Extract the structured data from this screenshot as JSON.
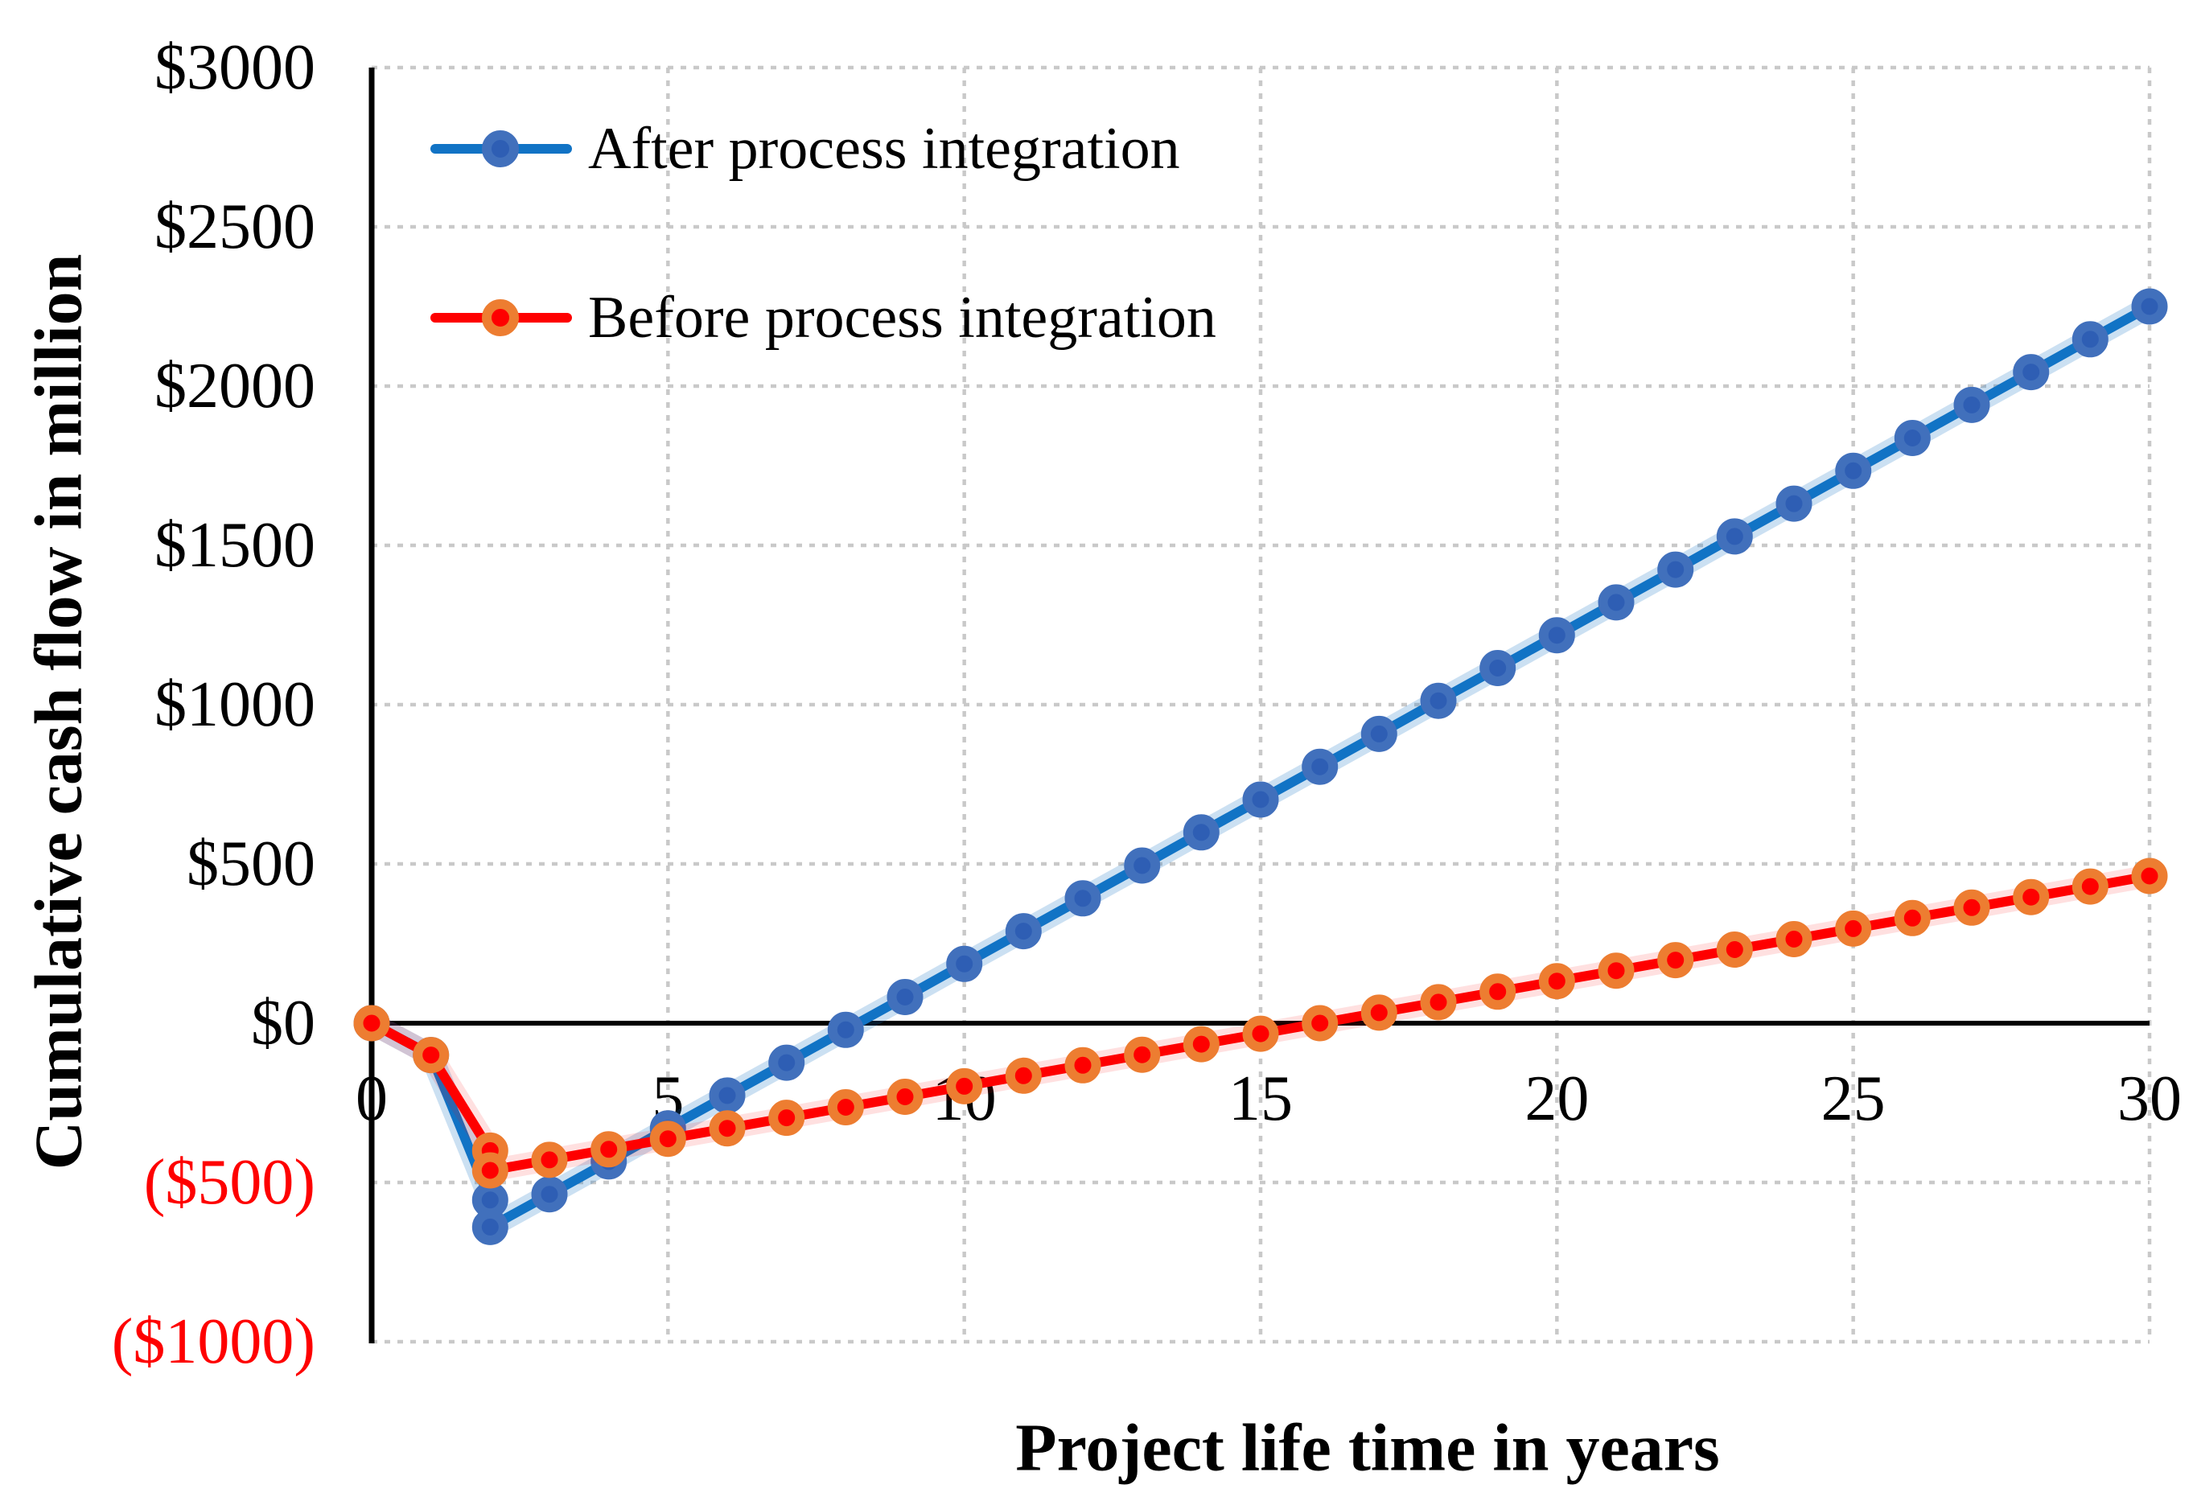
{
  "chart_data": {
    "type": "line",
    "title": "",
    "xlabel": "Project life time in years",
    "ylabel": "Cumulative cash flow in million",
    "xlim": [
      0,
      30
    ],
    "ylim": [
      -1000,
      3000
    ],
    "grid": "dotted",
    "legend_position": "top-left-inside",
    "colors": {
      "axis": "#000000",
      "gridline": "#C9C9C9",
      "negative_tick_label": "#FE0000"
    },
    "x_ticks": [
      {
        "value": 0,
        "label": "0",
        "color": "#000000"
      },
      {
        "value": 5,
        "label": "5",
        "color": "#000000"
      },
      {
        "value": 10,
        "label": "10",
        "color": "#000000"
      },
      {
        "value": 15,
        "label": "15",
        "color": "#000000"
      },
      {
        "value": 20,
        "label": "20",
        "color": "#000000"
      },
      {
        "value": 25,
        "label": "25",
        "color": "#000000"
      },
      {
        "value": 30,
        "label": "30",
        "color": "#000000"
      }
    ],
    "y_ticks": [
      {
        "value": 3000,
        "label": "$3000",
        "color": "#000000"
      },
      {
        "value": 2500,
        "label": "$2500",
        "color": "#000000"
      },
      {
        "value": 2000,
        "label": "$2000",
        "color": "#000000"
      },
      {
        "value": 1500,
        "label": "$1500",
        "color": "#000000"
      },
      {
        "value": 1000,
        "label": "$1000",
        "color": "#000000"
      },
      {
        "value": 500,
        "label": "$500",
        "color": "#000000"
      },
      {
        "value": 0,
        "label": "$0",
        "color": "#000000"
      },
      {
        "value": -500,
        "label": "($500)",
        "color": "#FE0000"
      },
      {
        "value": -1000,
        "label": "($1000)",
        "color": "#FE0000"
      }
    ],
    "series": [
      {
        "name": "After process integration",
        "line_color": "#1173C5",
        "marker_fill": "#2E5EB4",
        "marker_border": "#4170BC",
        "x": [
          0,
          1,
          2,
          2,
          3,
          4,
          5,
          6,
          7,
          8,
          9,
          10,
          11,
          12,
          13,
          14,
          15,
          16,
          17,
          18,
          19,
          20,
          21,
          22,
          23,
          24,
          25,
          26,
          27,
          28,
          29,
          30
        ],
        "y": [
          0,
          -100,
          -555,
          -640,
          -537,
          -434,
          -330,
          -227,
          -124,
          -21,
          82,
          186,
          289,
          392,
          495,
          599,
          702,
          805,
          908,
          1012,
          1115,
          1218,
          1321,
          1424,
          1528,
          1631,
          1734,
          1837,
          1941,
          2044,
          2147,
          2250
        ]
      },
      {
        "name": "Before process integration",
        "line_color": "#FE0000",
        "marker_fill": "#FE0000",
        "marker_border": "#ED7D31",
        "x": [
          0,
          1,
          2,
          2,
          3,
          4,
          5,
          6,
          7,
          8,
          9,
          10,
          11,
          12,
          13,
          14,
          15,
          16,
          17,
          18,
          19,
          20,
          21,
          22,
          23,
          24,
          25,
          26,
          27,
          28,
          29,
          30
        ],
        "y": [
          0,
          -100,
          -400,
          -462,
          -429,
          -396,
          -363,
          -330,
          -297,
          -264,
          -231,
          -198,
          -165,
          -132,
          -99,
          -66,
          -33,
          0,
          33,
          66,
          99,
          132,
          165,
          198,
          231,
          264,
          297,
          330,
          363,
          396,
          429,
          462
        ]
      }
    ]
  }
}
